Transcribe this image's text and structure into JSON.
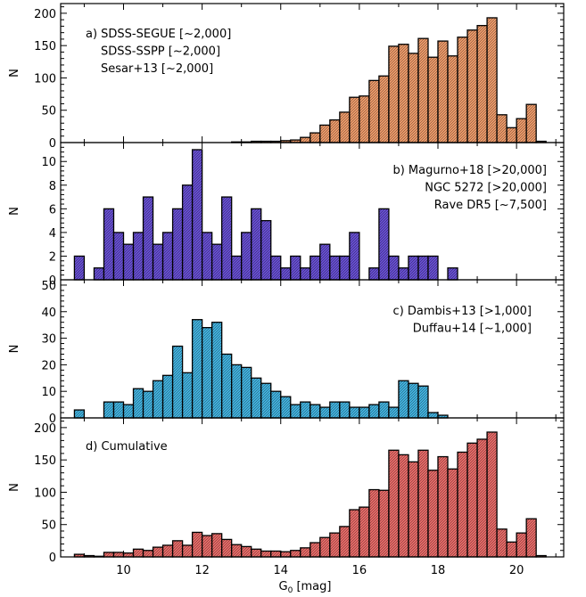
{
  "figure": {
    "xlabel_main": "G",
    "xlabel_sub": "0",
    "xlabel_unit": " [mag]",
    "x_ticks": [
      "10",
      "12",
      "14",
      "16",
      "18",
      "20"
    ]
  },
  "chart_data": [
    {
      "type": "bar",
      "panel": "a",
      "ylabel": "N",
      "legend_placement": "top-left",
      "legend": [
        "a) SDSS-SEGUE [~2,000]",
        "SDSS-SSPP [~2,000]",
        "Sesar+13 [~2,000]"
      ],
      "xlim": [
        8.4,
        21.2
      ],
      "ylim": [
        0,
        215
      ],
      "y_ticks": [
        0,
        50,
        100,
        150,
        200
      ],
      "bin_width": 0.25,
      "color": "#F5A06E",
      "bins": [
        {
          "x": 13.0,
          "y": 1
        },
        {
          "x": 13.25,
          "y": 1
        },
        {
          "x": 13.5,
          "y": 2
        },
        {
          "x": 13.75,
          "y": 2
        },
        {
          "x": 14.0,
          "y": 2
        },
        {
          "x": 14.25,
          "y": 3
        },
        {
          "x": 14.5,
          "y": 4
        },
        {
          "x": 14.75,
          "y": 8
        },
        {
          "x": 15.0,
          "y": 15
        },
        {
          "x": 15.25,
          "y": 27
        },
        {
          "x": 15.5,
          "y": 35
        },
        {
          "x": 15.75,
          "y": 47
        },
        {
          "x": 16.0,
          "y": 70
        },
        {
          "x": 16.25,
          "y": 72
        },
        {
          "x": 16.5,
          "y": 96
        },
        {
          "x": 16.75,
          "y": 103
        },
        {
          "x": 17.0,
          "y": 149
        },
        {
          "x": 17.25,
          "y": 152
        },
        {
          "x": 17.5,
          "y": 138
        },
        {
          "x": 17.75,
          "y": 161
        },
        {
          "x": 18.0,
          "y": 132
        },
        {
          "x": 18.25,
          "y": 157
        },
        {
          "x": 18.5,
          "y": 134
        },
        {
          "x": 18.75,
          "y": 163
        },
        {
          "x": 19.0,
          "y": 174
        },
        {
          "x": 19.25,
          "y": 181
        },
        {
          "x": 19.5,
          "y": 193
        },
        {
          "x": 19.75,
          "y": 43
        },
        {
          "x": 20.0,
          "y": 23
        },
        {
          "x": 20.25,
          "y": 37
        },
        {
          "x": 20.5,
          "y": 59
        },
        {
          "x": 20.75,
          "y": 2
        }
      ]
    },
    {
      "type": "bar",
      "panel": "b",
      "ylabel": "N",
      "legend_placement": "top-right",
      "legend": [
        "b) Magurno+18 [>20,000]",
        "NGC 5272 [>20,000]",
        "Rave DR5 [~7,500]"
      ],
      "xlim": [
        8.4,
        21.2
      ],
      "ylim": [
        0,
        11.6
      ],
      "y_ticks": [
        0,
        2,
        4,
        6,
        8,
        10
      ],
      "bin_width": 0.25,
      "color": "#6B52D9",
      "bins": [
        {
          "x": 9.0,
          "y": 2
        },
        {
          "x": 9.25,
          "y": 0
        },
        {
          "x": 9.5,
          "y": 1
        },
        {
          "x": 9.75,
          "y": 6
        },
        {
          "x": 10.0,
          "y": 4
        },
        {
          "x": 10.25,
          "y": 3
        },
        {
          "x": 10.5,
          "y": 4
        },
        {
          "x": 10.75,
          "y": 7
        },
        {
          "x": 11.0,
          "y": 3
        },
        {
          "x": 11.25,
          "y": 4
        },
        {
          "x": 11.5,
          "y": 6
        },
        {
          "x": 11.75,
          "y": 8
        },
        {
          "x": 12.0,
          "y": 11
        },
        {
          "x": 12.25,
          "y": 4
        },
        {
          "x": 12.5,
          "y": 3
        },
        {
          "x": 12.75,
          "y": 7
        },
        {
          "x": 13.0,
          "y": 2
        },
        {
          "x": 13.25,
          "y": 4
        },
        {
          "x": 13.5,
          "y": 6
        },
        {
          "x": 13.75,
          "y": 5
        },
        {
          "x": 14.0,
          "y": 2
        },
        {
          "x": 14.25,
          "y": 1
        },
        {
          "x": 14.5,
          "y": 2
        },
        {
          "x": 14.75,
          "y": 1
        },
        {
          "x": 15.0,
          "y": 2
        },
        {
          "x": 15.25,
          "y": 3
        },
        {
          "x": 15.5,
          "y": 2
        },
        {
          "x": 15.75,
          "y": 2
        },
        {
          "x": 16.0,
          "y": 4
        },
        {
          "x": 16.25,
          "y": 0
        },
        {
          "x": 16.5,
          "y": 1
        },
        {
          "x": 16.75,
          "y": 6
        },
        {
          "x": 17.0,
          "y": 2
        },
        {
          "x": 17.25,
          "y": 1
        },
        {
          "x": 17.5,
          "y": 2
        },
        {
          "x": 17.75,
          "y": 2
        },
        {
          "x": 18.0,
          "y": 2
        },
        {
          "x": 18.5,
          "y": 1
        }
      ]
    },
    {
      "type": "bar",
      "panel": "c",
      "ylabel": "N",
      "legend_placement": "top-right",
      "legend": [
        "c) Dambis+13 [>1,000]",
        "Duffau+14 [~1,000]"
      ],
      "xlim": [
        8.4,
        21.2
      ],
      "ylim": [
        0,
        52
      ],
      "y_ticks": [
        0,
        10,
        20,
        30,
        40,
        50
      ],
      "bin_width": 0.25,
      "color": "#45B8E6",
      "bins": [
        {
          "x": 9.0,
          "y": 3
        },
        {
          "x": 9.25,
          "y": 0
        },
        {
          "x": 9.5,
          "y": 0
        },
        {
          "x": 9.75,
          "y": 6
        },
        {
          "x": 10.0,
          "y": 6
        },
        {
          "x": 10.25,
          "y": 5
        },
        {
          "x": 10.5,
          "y": 11
        },
        {
          "x": 10.75,
          "y": 10
        },
        {
          "x": 11.0,
          "y": 14
        },
        {
          "x": 11.25,
          "y": 16
        },
        {
          "x": 11.5,
          "y": 27
        },
        {
          "x": 11.75,
          "y": 17
        },
        {
          "x": 12.0,
          "y": 37
        },
        {
          "x": 12.25,
          "y": 34
        },
        {
          "x": 12.5,
          "y": 36
        },
        {
          "x": 12.75,
          "y": 24
        },
        {
          "x": 13.0,
          "y": 20
        },
        {
          "x": 13.25,
          "y": 19
        },
        {
          "x": 13.5,
          "y": 15
        },
        {
          "x": 13.75,
          "y": 13
        },
        {
          "x": 14.0,
          "y": 10
        },
        {
          "x": 14.25,
          "y": 8
        },
        {
          "x": 14.5,
          "y": 5
        },
        {
          "x": 14.75,
          "y": 6
        },
        {
          "x": 15.0,
          "y": 5
        },
        {
          "x": 15.25,
          "y": 4
        },
        {
          "x": 15.5,
          "y": 6
        },
        {
          "x": 15.75,
          "y": 6
        },
        {
          "x": 16.0,
          "y": 4
        },
        {
          "x": 16.25,
          "y": 4
        },
        {
          "x": 16.5,
          "y": 5
        },
        {
          "x": 16.75,
          "y": 6
        },
        {
          "x": 17.0,
          "y": 4
        },
        {
          "x": 17.25,
          "y": 14
        },
        {
          "x": 17.5,
          "y": 13
        },
        {
          "x": 17.75,
          "y": 12
        },
        {
          "x": 18.0,
          "y": 2
        },
        {
          "x": 18.25,
          "y": 1
        }
      ]
    },
    {
      "type": "bar",
      "panel": "d",
      "ylabel": "N",
      "legend_placement": "top-left",
      "legend": [
        "d) Cumulative"
      ],
      "xlim": [
        8.4,
        21.2
      ],
      "ylim": [
        0,
        215
      ],
      "y_ticks": [
        0,
        50,
        100,
        150,
        200
      ],
      "bin_width": 0.25,
      "color": "#EF6F6C",
      "bins": [
        {
          "x": 9.0,
          "y": 4
        },
        {
          "x": 9.25,
          "y": 2
        },
        {
          "x": 9.5,
          "y": 1
        },
        {
          "x": 9.75,
          "y": 7
        },
        {
          "x": 10.0,
          "y": 7
        },
        {
          "x": 10.25,
          "y": 6
        },
        {
          "x": 10.5,
          "y": 12
        },
        {
          "x": 10.75,
          "y": 10
        },
        {
          "x": 11.0,
          "y": 15
        },
        {
          "x": 11.25,
          "y": 18
        },
        {
          "x": 11.5,
          "y": 25
        },
        {
          "x": 11.75,
          "y": 18
        },
        {
          "x": 12.0,
          "y": 38
        },
        {
          "x": 12.25,
          "y": 33
        },
        {
          "x": 12.5,
          "y": 36
        },
        {
          "x": 12.75,
          "y": 27
        },
        {
          "x": 13.0,
          "y": 19
        },
        {
          "x": 13.25,
          "y": 16
        },
        {
          "x": 13.5,
          "y": 12
        },
        {
          "x": 13.75,
          "y": 9
        },
        {
          "x": 14.0,
          "y": 9
        },
        {
          "x": 14.25,
          "y": 8
        },
        {
          "x": 14.5,
          "y": 10
        },
        {
          "x": 14.75,
          "y": 14
        },
        {
          "x": 15.0,
          "y": 22
        },
        {
          "x": 15.25,
          "y": 30
        },
        {
          "x": 15.5,
          "y": 37
        },
        {
          "x": 15.75,
          "y": 47
        },
        {
          "x": 16.0,
          "y": 73
        },
        {
          "x": 16.25,
          "y": 77
        },
        {
          "x": 16.5,
          "y": 104
        },
        {
          "x": 16.75,
          "y": 103
        },
        {
          "x": 17.0,
          "y": 165
        },
        {
          "x": 17.25,
          "y": 158
        },
        {
          "x": 17.5,
          "y": 147
        },
        {
          "x": 17.75,
          "y": 165
        },
        {
          "x": 18.0,
          "y": 134
        },
        {
          "x": 18.25,
          "y": 155
        },
        {
          "x": 18.5,
          "y": 136
        },
        {
          "x": 18.75,
          "y": 162
        },
        {
          "x": 19.0,
          "y": 176
        },
        {
          "x": 19.25,
          "y": 182
        },
        {
          "x": 19.5,
          "y": 193
        },
        {
          "x": 19.75,
          "y": 43
        },
        {
          "x": 20.0,
          "y": 23
        },
        {
          "x": 20.25,
          "y": 37
        },
        {
          "x": 20.5,
          "y": 59
        },
        {
          "x": 20.75,
          "y": 2
        }
      ]
    }
  ]
}
